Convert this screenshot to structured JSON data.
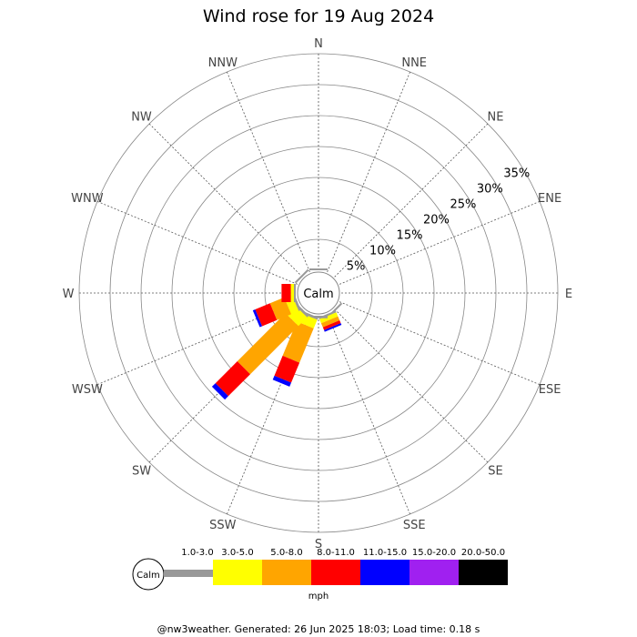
{
  "chart_data": {
    "type": "wind-rose",
    "title": "Wind rose for 19 Aug 2024",
    "directions": [
      "N",
      "NNE",
      "NE",
      "ENE",
      "E",
      "ESE",
      "SE",
      "SSE",
      "S",
      "SSW",
      "SW",
      "WSW",
      "W",
      "WNW",
      "NW",
      "NNW"
    ],
    "radial_ticks": [
      "5%",
      "10%",
      "15%",
      "20%",
      "25%",
      "30%",
      "35%"
    ],
    "radial_max_percent": 35,
    "center_label": "Calm",
    "unit": "mph",
    "bins": [
      {
        "label": "1.0-3.0",
        "color": "#999999"
      },
      {
        "label": "3.0-5.0",
        "color": "#ffff00"
      },
      {
        "label": "5.0-8.0",
        "color": "#ffa500"
      },
      {
        "label": "8.0-11.0",
        "color": "#ff0000"
      },
      {
        "label": "11.0-15.0",
        "color": "#0000ff"
      },
      {
        "label": "15.0-20.0",
        "color": "#a020f0"
      },
      {
        "label": "20.0-50.0",
        "color": "#000000"
      }
    ],
    "series": [
      {
        "direction": "N",
        "values": [
          0.3,
          0,
          0,
          0,
          0,
          0,
          0
        ]
      },
      {
        "direction": "SE",
        "values": [
          0.3,
          0,
          0,
          0,
          0,
          0,
          0
        ]
      },
      {
        "direction": "SSE",
        "values": [
          0.3,
          0.7,
          0.7,
          0.5,
          0.3,
          0,
          0
        ]
      },
      {
        "direction": "S",
        "values": [
          0.4,
          0,
          0,
          0,
          0,
          0,
          0
        ]
      },
      {
        "direction": "SSW",
        "values": [
          0.4,
          1.5,
          6.0,
          3.5,
          0.7,
          0,
          0
        ]
      },
      {
        "direction": "SW",
        "values": [
          0.4,
          2.0,
          11.0,
          5.0,
          0.8,
          0,
          0
        ]
      },
      {
        "direction": "WSW",
        "values": [
          0.4,
          1.3,
          2.5,
          2.6,
          0.4,
          0,
          0
        ]
      },
      {
        "direction": "W",
        "values": [
          0.3,
          0.5,
          0,
          1.5,
          0,
          0,
          0
        ]
      },
      {
        "direction": "NW",
        "values": [
          0.3,
          0,
          0,
          0,
          0,
          0,
          0
        ]
      }
    ]
  },
  "footer": "@nw3weather. Generated: 26 Jun 2025 18:03; Load time: 0.18 s"
}
